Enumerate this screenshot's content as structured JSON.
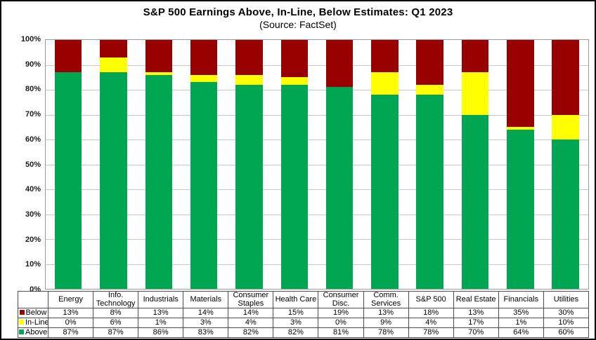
{
  "chart": {
    "title": "S&P 500 Earnings Above, In-Line, Below Estimates: Q1 2023",
    "subtitle": "(Source: FactSet)"
  },
  "chart_data": {
    "type": "bar",
    "stacked": true,
    "title": "S&P 500 Earnings Above, In-Line, Below Estimates: Q1 2023",
    "subtitle": "(Source: FactSet)",
    "categories": [
      "Energy",
      "Info. Technology",
      "Industrials",
      "Materials",
      "Consumer Staples",
      "Health Care",
      "Consumer Disc.",
      "Comm. Services",
      "S&P 500",
      "Real Estate",
      "Financials",
      "Utilities"
    ],
    "series": [
      {
        "name": "Below",
        "color": "#990000",
        "values": [
          13,
          8,
          13,
          14,
          14,
          15,
          19,
          13,
          18,
          13,
          35,
          30
        ]
      },
      {
        "name": "In-Line",
        "color": "#FFFF00",
        "values": [
          0,
          6,
          1,
          3,
          4,
          3,
          0,
          9,
          4,
          17,
          1,
          10
        ]
      },
      {
        "name": "Above",
        "color": "#00A651",
        "values": [
          87,
          87,
          86,
          83,
          82,
          82,
          81,
          78,
          78,
          70,
          64,
          60
        ]
      }
    ],
    "value_suffix": "%",
    "yticks": [
      "100%",
      "90%",
      "80%",
      "70%",
      "60%",
      "50%",
      "40%",
      "30%",
      "20%",
      "10%",
      "0%"
    ],
    "ylim": [
      0,
      100
    ],
    "grid": true,
    "legend_position": "table-left",
    "colors": {
      "below": "#990000",
      "inline": "#FFFF00",
      "above": "#00A651",
      "gridline": "#c6c6c6",
      "plot_border": "#999999"
    }
  }
}
